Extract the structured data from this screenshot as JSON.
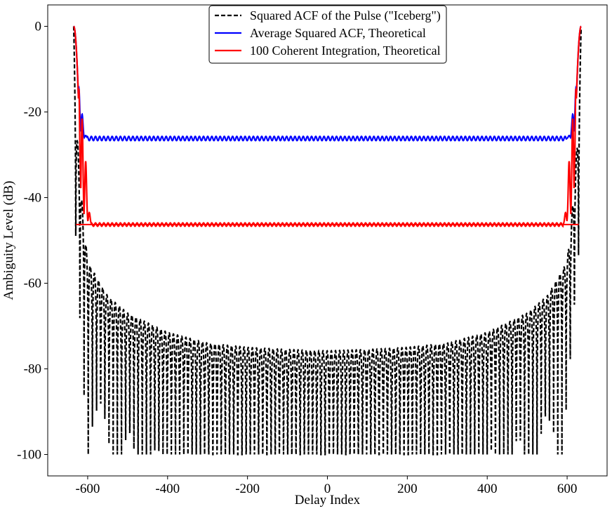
{
  "chart_data": {
    "type": "line",
    "xlabel": "Delay Index",
    "ylabel": "Ambiguity Level (dB)",
    "xlim": [
      -700,
      700
    ],
    "ylim": [
      -105,
      5
    ],
    "xticks": [
      -600,
      -400,
      -200,
      0,
      200,
      400,
      600
    ],
    "xtick_labels": [
      "-600",
      "-400",
      "-200",
      "0",
      "200",
      "400",
      "600"
    ],
    "yticks": [
      0,
      -20,
      -40,
      -60,
      -80,
      -100
    ],
    "ytick_labels": [
      "0",
      "-20",
      "-40",
      "-60",
      "-80",
      "-100"
    ],
    "grid": false,
    "legend_position": "top-center",
    "series": [
      {
        "name": "Squared ACF of the Pulse (\"Iceberg\")",
        "color": "#000000",
        "style": "dashed",
        "x_range": [
          -635,
          635
        ],
        "peak": 0,
        "null_floor": -100,
        "envelope": [
          [
            -635,
            0
          ],
          [
            -630,
            -20
          ],
          [
            -620,
            -35
          ],
          [
            -610,
            -46
          ],
          [
            -600,
            -55
          ],
          [
            -550,
            -63
          ],
          [
            -500,
            -67
          ],
          [
            -400,
            -71.5
          ],
          [
            -300,
            -74
          ],
          [
            -200,
            -75
          ],
          [
            -100,
            -75.5
          ],
          [
            0,
            -75.8
          ],
          [
            100,
            -75.5
          ],
          [
            200,
            -75
          ],
          [
            300,
            -74
          ],
          [
            400,
            -71.5
          ],
          [
            500,
            -67
          ],
          [
            550,
            -63
          ],
          [
            600,
            -55
          ],
          [
            610,
            -46
          ],
          [
            620,
            -35
          ],
          [
            630,
            -20
          ],
          [
            635,
            0
          ]
        ]
      },
      {
        "name": "Average Squared ACF, Theoretical",
        "color": "#0000ff",
        "style": "solid",
        "x_range": [
          -635,
          635
        ],
        "peak": 0,
        "floor": -26.2,
        "floor_ripple": 0.5,
        "sidelobes": [
          [
            -622,
            -14.5
          ],
          [
            -614,
            -20.5
          ],
          [
            -605,
            -25.5
          ],
          [
            605,
            -25.5
          ],
          [
            614,
            -20.5
          ],
          [
            622,
            -14.5
          ]
        ]
      },
      {
        "name": "100 Coherent Integration, Theoretical",
        "color": "#ff0000",
        "style": "solid",
        "x_range": [
          -635,
          635
        ],
        "peak": 0,
        "floor": -46.3,
        "floor_ripple": 0.4,
        "baseline": -46.3,
        "sidelobes": [
          [
            -622,
            -14.5
          ],
          [
            -614,
            -21.5
          ],
          [
            -605,
            -31.5
          ],
          [
            -596,
            -43.5
          ],
          [
            596,
            -43.5
          ],
          [
            605,
            -31.5
          ],
          [
            614,
            -21.5
          ],
          [
            622,
            -14.5
          ]
        ]
      }
    ]
  }
}
